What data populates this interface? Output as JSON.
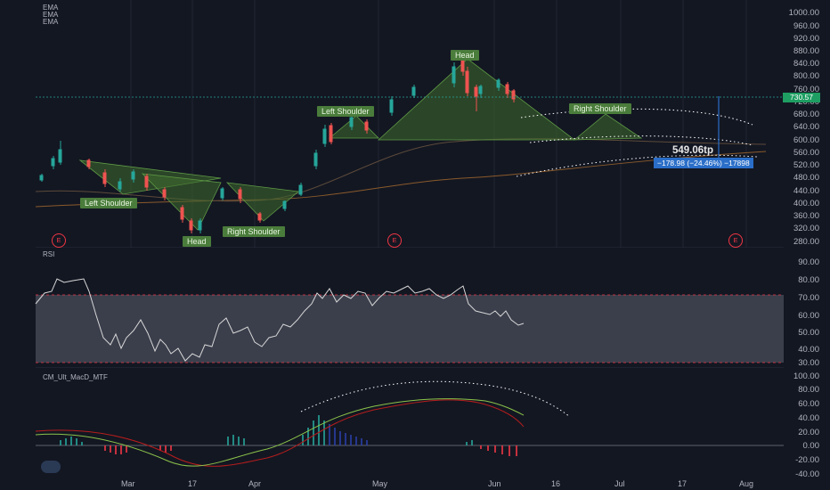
{
  "indicators": {
    "ema1": "EMA",
    "ema2": "EMA",
    "ema3": "EMA",
    "rsi": "RSI",
    "macd": "CM_Ult_MacD_MTF"
  },
  "price_axis": [
    "1000.00",
    "960.00",
    "920.00",
    "880.00",
    "840.00",
    "800.00",
    "760.00",
    "720.00",
    "680.00",
    "640.00",
    "600.00",
    "560.00",
    "520.00",
    "480.00",
    "440.00",
    "400.00",
    "360.00",
    "320.00",
    "280.00"
  ],
  "current_price": "730.57",
  "rsi_axis": [
    "90.00",
    "80.00",
    "70.00",
    "60.00",
    "50.00",
    "40.00",
    "30.00"
  ],
  "macd_axis": [
    "100.00",
    "80.00",
    "60.00",
    "40.00",
    "20.00",
    "0.00",
    "-20.00",
    "-40.00"
  ],
  "time_axis": [
    "Mar",
    "17",
    "Apr",
    "May",
    "Jun",
    "16",
    "Jul",
    "17",
    "Aug"
  ],
  "earnings_badge": "E",
  "annotations": {
    "left_shoulder_1": "Left Shoulder",
    "head_1": "Head",
    "right_shoulder_1": "Right Shoulder",
    "left_shoulder_2": "Left Shoulder",
    "head_2": "Head",
    "right_shoulder_2": "Right Shoulder"
  },
  "target_label": "549.06tp",
  "measure_label": "−178.98 (−24.46%) −17898",
  "colors": {
    "up": "#26a69a",
    "down": "#ef5350",
    "pattern": "#3f6b2e",
    "accent": "#2962ff"
  }
}
